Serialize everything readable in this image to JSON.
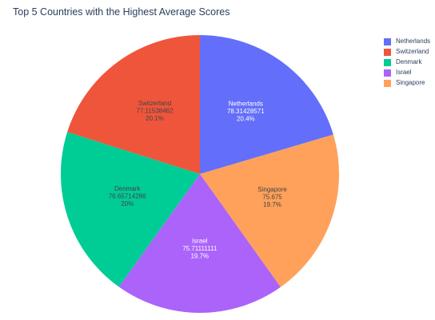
{
  "chart_data": {
    "type": "pie",
    "title": "Top 5 Countries with the Highest Average Scores",
    "categories": [
      "Netherlands",
      "Switzerland",
      "Denmark",
      "Israel",
      "Singapore"
    ],
    "values": [
      78.31428571,
      77.11538462,
      76.65714286,
      75.71111111,
      75.675
    ],
    "percent_labels": [
      "20.4%",
      "20.1%",
      "20%",
      "19.7%",
      "19.7%"
    ],
    "colors": [
      "#636efa",
      "#ef553b",
      "#00cc96",
      "#ab63fa",
      "#ffa15a"
    ],
    "slice_order": [
      "Netherlands",
      "Singapore",
      "Israel",
      "Denmark",
      "Switzerland"
    ],
    "direction": "clockwise",
    "start": "top",
    "legend": {
      "position": "top-right",
      "items": [
        "Netherlands",
        "Switzerland",
        "Denmark",
        "Israel",
        "Singapore"
      ]
    }
  }
}
